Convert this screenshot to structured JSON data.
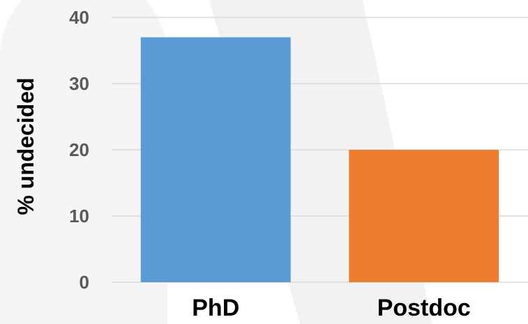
{
  "chart_data": {
    "type": "bar",
    "title": "",
    "xlabel": "",
    "ylabel": "% undecided",
    "categories": [
      "PhD",
      "Postdoc"
    ],
    "values": [
      37,
      20
    ],
    "colors": [
      "#5B9BD5",
      "#ED7D31"
    ],
    "ylim": [
      0,
      40
    ],
    "yticks": [
      "0",
      "10",
      "20",
      "30",
      "40"
    ],
    "grid": true,
    "legend": "none"
  }
}
